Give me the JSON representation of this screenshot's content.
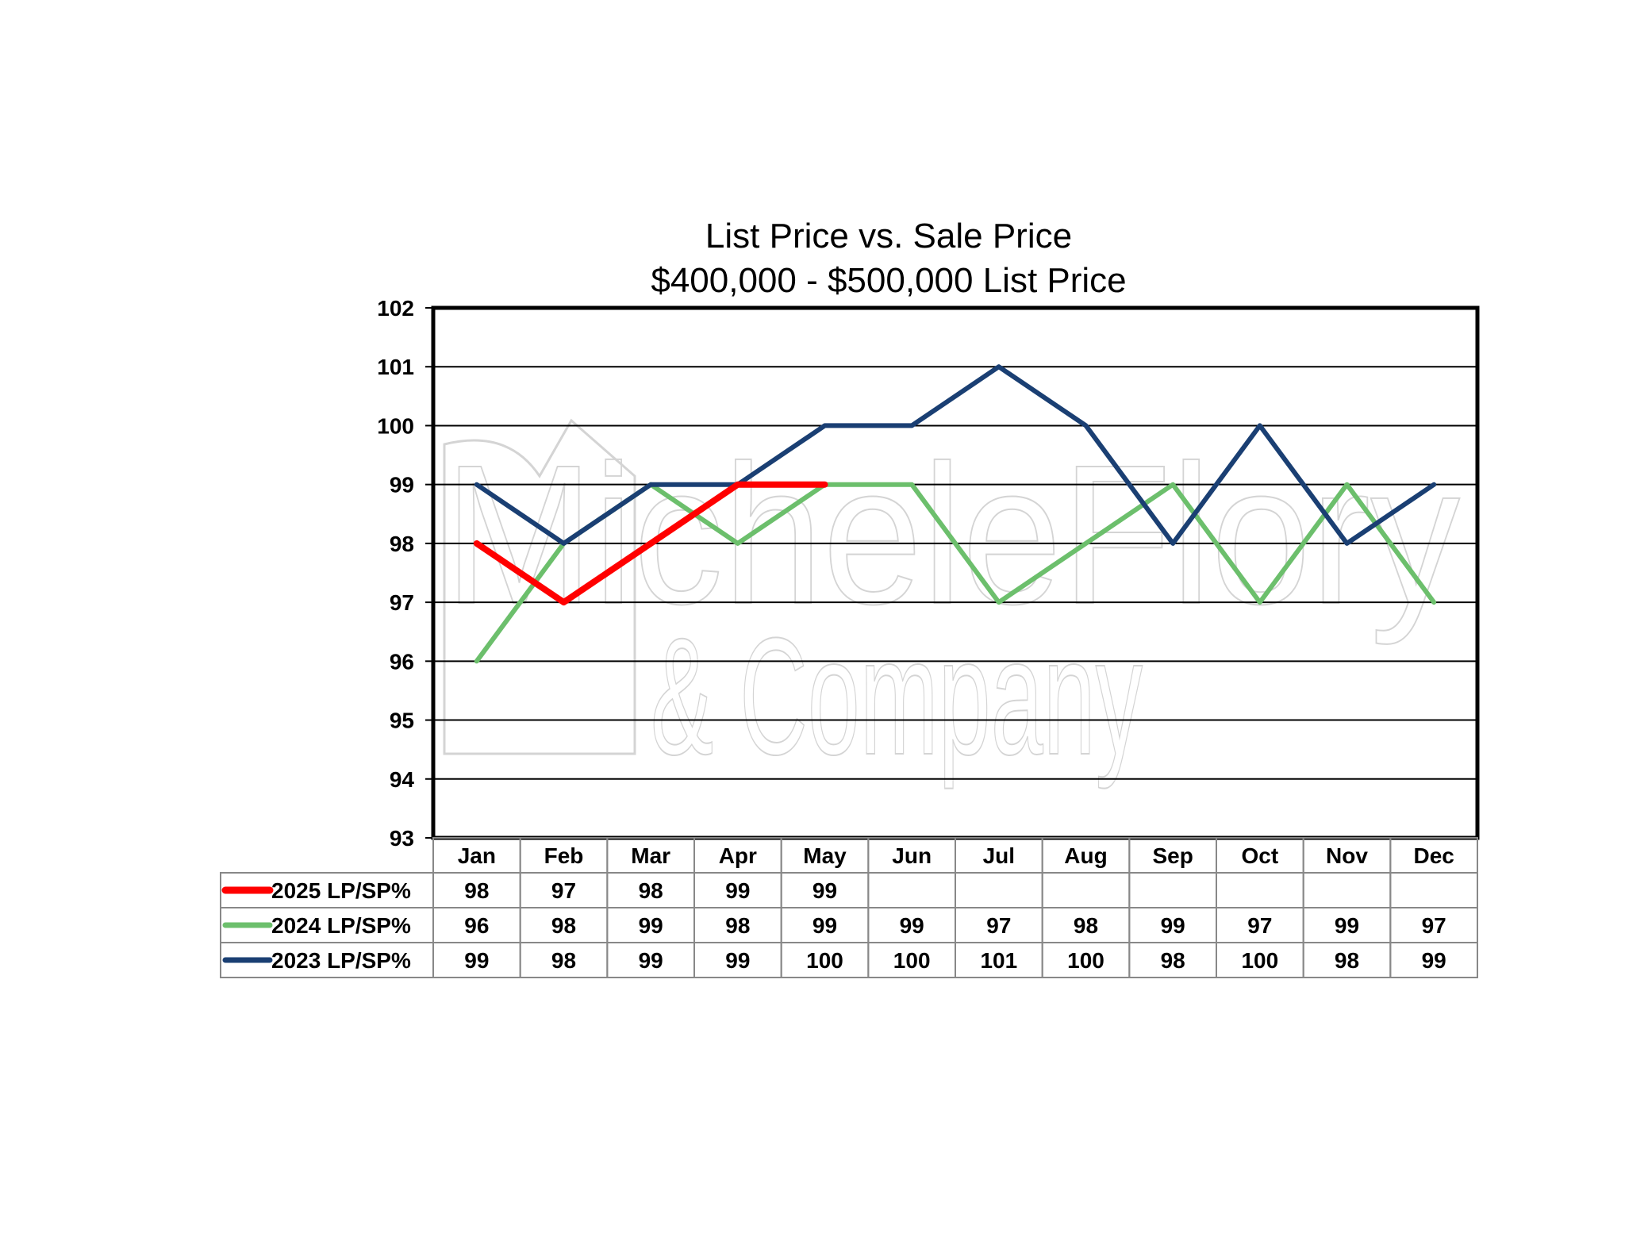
{
  "chart_data": {
    "type": "line",
    "title": "List Price vs. Sale Price",
    "subtitle": "$400,000 - $500,000  List Price",
    "categories": [
      "Jan",
      "Feb",
      "Mar",
      "Apr",
      "May",
      "Jun",
      "Jul",
      "Aug",
      "Sep",
      "Oct",
      "Nov",
      "Dec"
    ],
    "ylim": [
      93,
      102
    ],
    "yticks": [
      93,
      94,
      95,
      96,
      97,
      98,
      99,
      100,
      101,
      102
    ],
    "grid": true,
    "legend_placement": "data-table-left",
    "series": [
      {
        "name": "2025 LP/SP%",
        "color": "#ff0000",
        "values": [
          98,
          97,
          98,
          99,
          99,
          null,
          null,
          null,
          null,
          null,
          null,
          null
        ]
      },
      {
        "name": "2024 LP/SP%",
        "color": "#6cbf6c",
        "values": [
          96,
          98,
          99,
          98,
          99,
          99,
          97,
          98,
          99,
          97,
          99,
          97
        ]
      },
      {
        "name": "2023 LP/SP%",
        "color": "#1a3f73",
        "values": [
          99,
          98,
          99,
          99,
          100,
          100,
          101,
          100,
          98,
          100,
          98,
          99
        ]
      }
    ]
  },
  "watermark": {
    "line1": "MicheleFlory",
    "line2": "& Company"
  }
}
